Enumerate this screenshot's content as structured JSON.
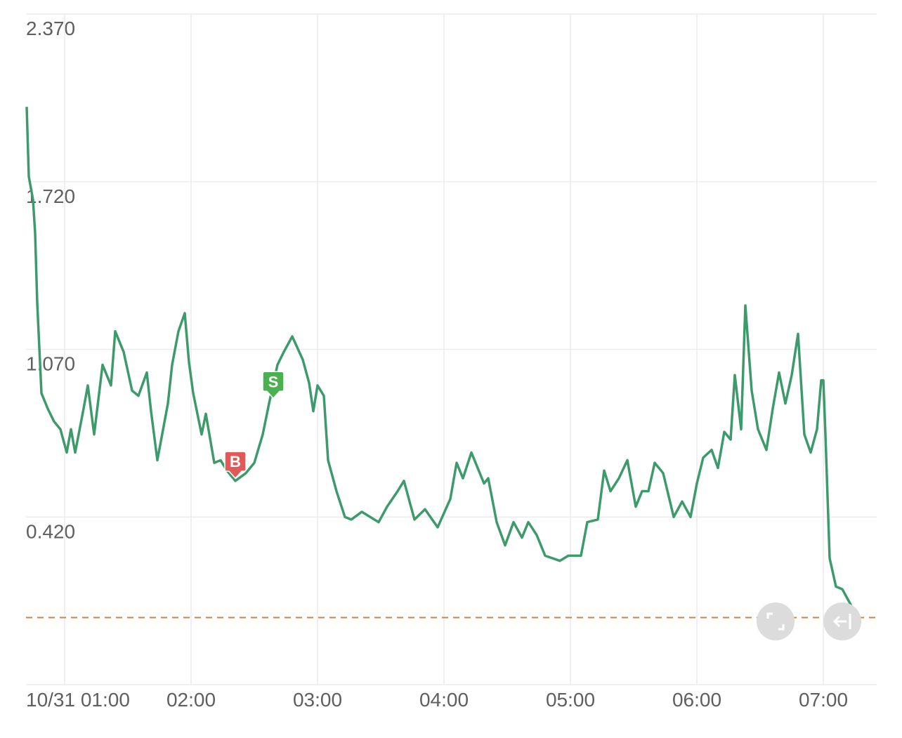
{
  "chart_data": {
    "type": "line",
    "x": [
      "10/31 00:42",
      "10/31 00:43",
      "10/31 00:45",
      "10/31 00:46",
      "10/31 00:47",
      "10/31 00:49",
      "10/31 00:52",
      "10/31 00:55",
      "10/31 00:58",
      "10/31 01:01",
      "10/31 01:03",
      "10/31 01:05",
      "10/31 01:09",
      "10/31 01:11",
      "10/31 01:14",
      "10/31 01:18",
      "10/31 01:22",
      "10/31 01:24",
      "10/31 01:28",
      "10/31 01:32",
      "10/31 01:35",
      "10/31 01:39",
      "10/31 01:41",
      "10/31 01:44",
      "10/31 01:49",
      "10/31 01:51",
      "10/31 01:54",
      "10/31 01:57",
      "10/31 01:59",
      "10/31 02:01",
      "10/31 02:05",
      "10/31 02:07",
      "10/31 02:11",
      "10/31 02:14",
      "10/31 02:17",
      "10/31 02:21",
      "10/31 02:26",
      "10/31 02:30",
      "10/31 02:34",
      "10/31 02:37",
      "10/31 02:41",
      "10/31 02:44",
      "10/31 02:48",
      "10/31 02:53",
      "10/31 02:56",
      "10/31 02:58",
      "10/31 03:00",
      "10/31 03:03",
      "10/31 03:05",
      "10/31 03:09",
      "10/31 03:13",
      "10/31 03:16",
      "10/31 03:21",
      "10/31 03:29",
      "10/31 03:33",
      "10/31 03:38",
      "10/31 03:41",
      "10/31 03:46",
      "10/31 03:51",
      "10/31 03:57",
      "10/31 04:03",
      "10/31 04:06",
      "10/31 04:09",
      "10/31 04:13",
      "10/31 04:16",
      "10/31 04:19",
      "10/31 04:21",
      "10/31 04:25",
      "10/31 04:29",
      "10/31 04:33",
      "10/31 04:37",
      "10/31 04:40",
      "10/31 04:44",
      "10/31 04:48",
      "10/31 04:55",
      "10/31 04:59",
      "10/31 05:05",
      "10/31 05:08",
      "10/31 05:13",
      "10/31 05:16",
      "10/31 05:19",
      "10/31 05:23",
      "10/31 05:27",
      "10/31 05:31",
      "10/31 05:34",
      "10/31 05:37",
      "10/31 05:40",
      "10/31 05:44",
      "10/31 05:49",
      "10/31 05:53",
      "10/31 05:57",
      "10/31 06:00",
      "10/31 06:03",
      "10/31 06:07",
      "10/31 06:10",
      "10/31 06:13",
      "10/31 06:16",
      "10/31 06:18",
      "10/31 06:21",
      "10/31 06:23",
      "10/31 06:26",
      "10/31 06:29",
      "10/31 06:33",
      "10/31 06:36",
      "10/31 06:39",
      "10/31 06:42",
      "10/31 06:45",
      "10/31 06:48",
      "10/31 06:51",
      "10/31 06:54",
      "10/31 06:57",
      "10/31 06:59",
      "10/31 07:00",
      "10/31 07:01",
      "10/31 07:03",
      "10/31 07:06",
      "10/31 07:09",
      "10/31 07:13",
      "10/31 07:15"
    ],
    "series": [
      {
        "color": "#3d9a6a",
        "values": [
          2.01,
          1.74,
          1.65,
          1.52,
          1.25,
          0.9,
          0.84,
          0.79,
          0.76,
          0.67,
          0.76,
          0.67,
          0.84,
          0.93,
          0.74,
          1.01,
          0.93,
          1.14,
          1.06,
          0.91,
          0.89,
          0.98,
          0.83,
          0.64,
          0.86,
          1.01,
          1.14,
          1.21,
          1.02,
          0.9,
          0.74,
          0.82,
          0.63,
          0.64,
          0.6,
          0.56,
          0.59,
          0.63,
          0.74,
          0.86,
          1.01,
          1.06,
          1.12,
          1.03,
          0.94,
          0.83,
          0.93,
          0.89,
          0.64,
          0.52,
          0.42,
          0.41,
          0.44,
          0.4,
          0.46,
          0.52,
          0.56,
          0.41,
          0.45,
          0.38,
          0.49,
          0.63,
          0.57,
          0.67,
          0.61,
          0.55,
          0.57,
          0.4,
          0.31,
          0.4,
          0.34,
          0.4,
          0.35,
          0.27,
          0.25,
          0.27,
          0.27,
          0.4,
          0.41,
          0.6,
          0.52,
          0.57,
          0.64,
          0.46,
          0.52,
          0.52,
          0.63,
          0.59,
          0.42,
          0.48,
          0.42,
          0.55,
          0.65,
          0.68,
          0.61,
          0.75,
          0.72,
          0.97,
          0.76,
          1.24,
          0.91,
          0.76,
          0.68,
          0.84,
          0.98,
          0.86,
          0.97,
          1.13,
          0.74,
          0.67,
          0.76,
          0.95,
          0.95,
          0.74,
          0.26,
          0.15,
          0.14,
          0.08,
          0.04
        ]
      }
    ],
    "xlim": [
      "10/31 00:42",
      "10/31 07:25"
    ],
    "xticks": [
      {
        "value": "10/31 01:00",
        "label": "10/31 01:00"
      },
      {
        "value": "10/31 02:00",
        "label": "02:00"
      },
      {
        "value": "10/31 03:00",
        "label": "03:00"
      },
      {
        "value": "10/31 04:00",
        "label": "04:00"
      },
      {
        "value": "10/31 05:00",
        "label": "05:00"
      },
      {
        "value": "10/31 06:00",
        "label": "06:00"
      },
      {
        "value": "10/31 07:00",
        "label": "07:00"
      }
    ],
    "ylim": [
      -0.23,
      2.37
    ],
    "yticks": [
      {
        "value": 2.37,
        "label": "2.370"
      },
      {
        "value": 1.72,
        "label": "1.720"
      },
      {
        "value": 1.07,
        "label": "1.070"
      },
      {
        "value": 0.42,
        "label": "0.420"
      }
    ],
    "grid": true,
    "reference_line": {
      "value": 0.03,
      "color": "#d9823b"
    },
    "markers": [
      {
        "label": "B",
        "x": "10/31 02:21",
        "value": 0.57,
        "color": "#e05a5a"
      },
      {
        "label": "S",
        "x": "10/31 02:39",
        "value": 0.88,
        "color": "#4caf50"
      }
    ]
  }
}
